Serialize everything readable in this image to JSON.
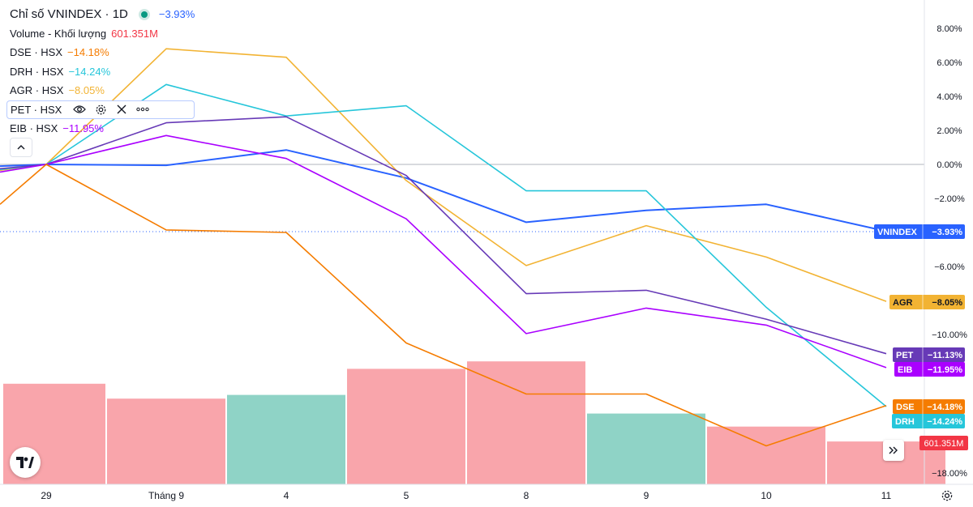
{
  "legend": {
    "title": "Chỉ số VNINDEX · 1D",
    "change": "−3.93%",
    "volume_label": "Volume - Khối lượng",
    "volume_value": "601.351M",
    "rows": [
      {
        "name": "DSE · HSX",
        "value": "−14.18%",
        "color": "#f57c00"
      },
      {
        "name": "DRH · HSX",
        "value": "−14.24%",
        "color": "#26c6da"
      },
      {
        "name": "AGR · HSX",
        "value": "−8.05%",
        "color": "#f2b333"
      },
      {
        "name": "PET · HSX",
        "value": "",
        "color": "#673ab7"
      },
      {
        "name": "EIB · HSX",
        "value": "−11.95%",
        "color": "#aa00ff"
      }
    ],
    "collapse_icon": "chevron-up-icon"
  },
  "icons": {
    "eye": "eye-icon",
    "settings": "gear-icon",
    "remove": "close-icon",
    "more": "more-icon",
    "logo": "tradingview-logo",
    "scroll": "double-chevron-right-icon",
    "axis_settings": "gear-icon"
  },
  "colors": {
    "up": "#089981",
    "down": "#f23645",
    "volume_up": "#8fd3c6",
    "volume_down": "#f9a5ab",
    "accent": "#2962ff"
  },
  "chart_data": {
    "type": "line",
    "x_labels": [
      "29",
      "Tháng 9",
      "4",
      "5",
      "8",
      "9",
      "10",
      "11"
    ],
    "y_axis_labels": [
      "8.00%",
      "6.00%",
      "4.00%",
      "2.00%",
      "0.00%",
      "−2.00%",
      "−6.00%",
      "−10.00%",
      "−18.00%"
    ],
    "y_ticks": [
      8,
      6,
      4,
      2,
      0,
      -2,
      -6,
      -10,
      -18
    ],
    "ylim": [
      -18.9,
      9.3
    ],
    "scale": "percent",
    "baseline": 0,
    "series": [
      {
        "name": "VNINDEX",
        "color": "#2962ff",
        "pre": -0.1,
        "values": [
          0,
          -0.05,
          0.85,
          -0.8,
          -3.4,
          -2.7,
          -2.35,
          -3.93
        ],
        "end_label": "−3.93%"
      },
      {
        "name": "AGR",
        "color": "#f2b333",
        "pre": -0.35,
        "values": [
          0,
          6.8,
          6.3,
          -0.95,
          -5.95,
          -3.6,
          -5.45,
          -8.05
        ],
        "end_label": "−8.05%"
      },
      {
        "name": "DRH",
        "color": "#26c6da",
        "pre": -0.3,
        "values": [
          0,
          4.7,
          2.85,
          3.45,
          -1.55,
          -1.55,
          -8.4,
          -14.24
        ],
        "end_label": "−14.24%"
      },
      {
        "name": "PET",
        "color": "#673ab7",
        "pre": -0.25,
        "values": [
          0,
          2.45,
          2.8,
          -0.65,
          -7.6,
          -7.4,
          -9.1,
          -11.13
        ],
        "end_label": "−11.13%"
      },
      {
        "name": "EIB",
        "color": "#aa00ff",
        "pre": -0.45,
        "values": [
          0,
          1.7,
          0.35,
          -3.2,
          -9.95,
          -8.45,
          -9.45,
          -11.95
        ],
        "end_label": "−11.95%"
      },
      {
        "name": "DSE",
        "color": "#f57c00",
        "pre": -2.35,
        "values": [
          0,
          -3.85,
          -4.0,
          -10.5,
          -13.5,
          -13.5,
          -16.55,
          -14.18
        ],
        "end_label": "−14.18%"
      }
    ],
    "volume": {
      "label": "601.351M",
      "pre_bar": {
        "value": 0.54,
        "direction": "down"
      },
      "bars": [
        {
          "value": 0.46,
          "direction": "down"
        },
        {
          "value": 0.48,
          "direction": "up"
        },
        {
          "value": 0.62,
          "direction": "down"
        },
        {
          "value": 0.66,
          "direction": "down"
        },
        {
          "value": 0.38,
          "direction": "up"
        },
        {
          "value": 0.31,
          "direction": "down"
        },
        {
          "value": 0.23,
          "direction": "down"
        }
      ]
    }
  }
}
